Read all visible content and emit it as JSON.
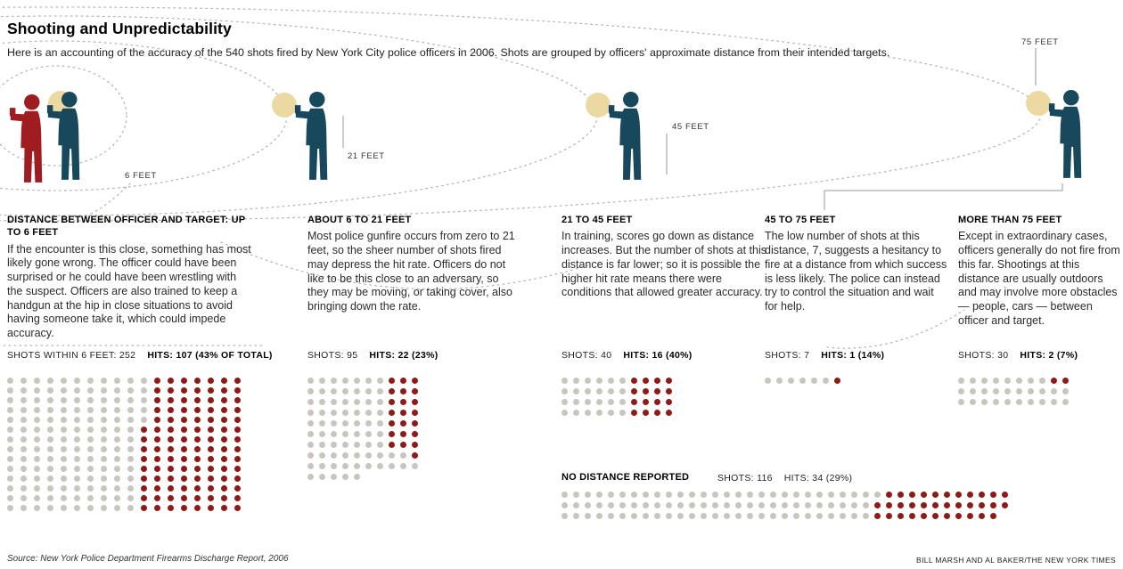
{
  "header": {
    "title": "Shooting and Unpredictability",
    "subtitle": "Here is an accounting of the accuracy of the 540 shots fired by New York City police officers in 2006. Shots are grouped by officers' approximate distance from their intended targets."
  },
  "distance_labels": [
    "6 FEET",
    "21 FEET",
    "45 FEET",
    "75 FEET"
  ],
  "columns": [
    {
      "heading": "DISTANCE BETWEEN OFFICER AND TARGET: UP TO 6 FEET",
      "body": "If the encounter is this close, something has most likely gone wrong. The officer could have been surprised or he could have been wrestling with the suspect. Officers are also trained to keep a handgun at the hip in close situations to avoid having someone take it, which could impede accuracy.",
      "shots_label": "SHOTS WITHIN 6 FEET: 252",
      "hits_label": "HITS: 107 (43% OF TOTAL)",
      "shots": 252,
      "hits": 107,
      "grid_rows": [
        "...........XXXXXXX",
        "...........XXXXXXX",
        "...........XXXXXXX",
        "...........XXXXXXX",
        "...........XXXXXXX",
        "..........XXXXXXXX",
        "..........XXXXXXXX",
        "..........XXXXXXXX",
        "..........XXXXXXXX",
        "..........XXXXXXXX",
        "..........XXXXXXXX",
        "..........XXXXXXXX",
        "..........XXXXXXXX",
        "..........XXXXXXXX"
      ]
    },
    {
      "heading": "ABOUT 6 TO 21 FEET",
      "body": "Most police gunfire occurs from zero to 21 feet, so the sheer number of shots fired may depress the hit rate. Officers do not like to be this close to an adversary, so they may be moving, or taking cover, also bringing down the rate.",
      "shots_label": "SHOTS: 95",
      "hits_label": "HITS: 22 (23%)",
      "shots": 95,
      "hits": 22,
      "grid_rows": [
        ".......XXX",
        ".......XXX",
        ".......XXX",
        ".......XXX",
        ".......XXX",
        ".......XXX",
        ".......XXX",
        ".........X",
        "..........",
        "....."
      ]
    },
    {
      "heading": "21 TO 45 FEET",
      "body": "In training, scores go down as distance increases. But the number of shots at this distance is far lower; so it is possible the higher hit rate means there were conditions that allowed greater accuracy.",
      "shots_label": "SHOTS: 40",
      "hits_label": "HITS: 16 (40%)",
      "shots": 40,
      "hits": 16,
      "grid_rows": [
        "......XXXX",
        "......XXXX",
        "......XXXX",
        "......XXXX"
      ]
    },
    {
      "heading": "45 TO 75 FEET",
      "body": "The low number of shots at this distance, 7, suggests a hesitancy to fire at a distance from which success is less likely. The police can instead try to control the situation and wait for help.",
      "shots_label": "SHOTS: 7",
      "hits_label": "HITS: 1 (14%)",
      "shots": 7,
      "hits": 1,
      "grid_rows": [
        "......X"
      ]
    },
    {
      "heading": "MORE THAN 75 FEET",
      "body": "Except in extraordinary cases, officers generally do not fire from this far. Shootings at this distance are usually outdoors and may involve more obstacles — people, cars — between officer and target.",
      "shots_label": "SHOTS: 30",
      "hits_label": "HITS: 2 (7%)",
      "shots": 30,
      "hits": 2,
      "grid_rows": [
        "........XX",
        "..........",
        ".........."
      ]
    }
  ],
  "no_distance": {
    "heading": "NO DISTANCE REPORTED",
    "shots_label": "SHOTS: 116",
    "hits_label": "HITS: 34 (29%)",
    "shots": 116,
    "hits": 34,
    "grid_rows": [
      "............................XXXXXXXXXXX",
      "...........................XXXXXXXXXXXX",
      "...........................XXXXXXXXXXX"
    ]
  },
  "footer": {
    "source": "Source: New York Police Department Firearms Discharge Report, 2006",
    "credit": "BILL MARSH AND AL BAKER/THE NEW YORK TIMES"
  },
  "colors": {
    "navy": "#17485c",
    "target-red": "#9f1c20",
    "flash-gold": "#ecd9a2",
    "hit-red": "#8e1b17",
    "miss-gray": "#c9c6bf",
    "arc-gray": "#b9b6ae"
  },
  "chart_data": {
    "type": "table",
    "title": "Shooting and Unpredictability",
    "subtitle": "Accuracy of the 540 shots fired by New York City police officers in 2006, grouped by approximate distance from intended targets",
    "unit": "1 dot = 1 shot; gray = miss, dark red = hit",
    "categories": [
      "Up to 6 feet",
      "About 6 to 21 feet",
      "21 to 45 feet",
      "45 to 75 feet",
      "More than 75 feet",
      "No distance reported"
    ],
    "series": [
      {
        "name": "Shots",
        "values": [
          252,
          95,
          40,
          7,
          30,
          116
        ]
      },
      {
        "name": "Hits",
        "values": [
          107,
          22,
          16,
          1,
          2,
          34
        ]
      },
      {
        "name": "Hit rate",
        "values": [
          "43% of total",
          "23%",
          "40%",
          "14%",
          "7%",
          "29%"
        ]
      }
    ],
    "total_shots": 540,
    "legend_position": "none",
    "grid": false
  }
}
